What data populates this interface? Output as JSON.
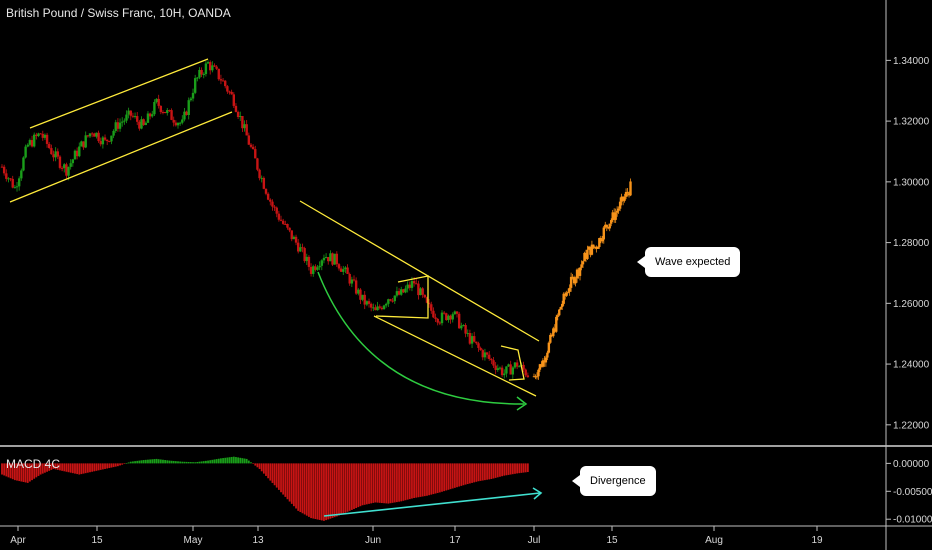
{
  "header": {
    "title": "British Pound / Swiss Franc, 10H, OANDA"
  },
  "indicator": {
    "label": "MACD 4C"
  },
  "callouts": {
    "wave": "Wave expected",
    "divergence": "Divergence"
  },
  "colors": {
    "bull": "#1a9e1a",
    "bear": "#c81414",
    "projection": "#f7931a",
    "channel": "#ffeb3b",
    "arc": "#2ecc40",
    "divergence_line": "#40e0d0",
    "background": "#000000"
  },
  "chart_data": [
    {
      "type": "line",
      "title": "British Pound / Swiss Franc, 10H, OANDA",
      "ylabel": "",
      "xlabel": "",
      "ylim": [
        1.215,
        1.35
      ],
      "y_ticks": [
        "1.34000",
        "1.32000",
        "1.30000",
        "1.28000",
        "1.26000",
        "1.24000",
        "1.22000"
      ],
      "x_ticks": [
        "Apr",
        "15",
        "May",
        "13",
        "Jun",
        "17",
        "Jul",
        "15",
        "Aug",
        "19"
      ],
      "series": [
        {
          "name": "",
          "values": [
            1.305,
            1.298,
            1.312,
            1.316,
            1.309,
            1.304,
            1.311,
            1.317,
            1.313,
            1.319,
            1.322,
            1.318,
            1.326,
            1.322,
            1.319,
            1.333,
            1.339,
            1.334,
            1.327,
            1.315,
            1.303,
            1.292,
            1.285,
            1.279,
            1.271,
            1.276,
            1.274,
            1.268,
            1.261,
            1.257,
            1.262,
            1.263,
            1.267,
            1.259,
            1.255,
            1.257,
            1.25,
            1.245,
            1.241,
            1.237,
            1.24,
            1.236
          ]
        },
        {
          "name": "",
          "values": [
            1.236,
            1.241,
            1.249,
            1.259,
            1.266,
            1.271,
            1.277,
            1.279,
            1.285,
            1.289,
            1.294,
            1.299
          ]
        }
      ],
      "grid": false
    },
    {
      "type": "bar",
      "title": "MACD 4C",
      "ylim": [
        -0.0105,
        0.0015
      ],
      "y_ticks": [
        "0.00000",
        "-0.00500",
        "-0.01000"
      ],
      "series": [
        {
          "name": "",
          "values": [
            -0.002,
            -0.003,
            -0.0035,
            -0.002,
            -0.001,
            -0.0015,
            -0.002,
            -0.0015,
            -0.001,
            -0.0005,
            0.0003,
            0.0006,
            0.0008,
            0.0005,
            0.0003,
            0.0002,
            0.0005,
            0.0009,
            0.0012,
            0.0008,
            -0.001,
            -0.0035,
            -0.006,
            -0.0085,
            -0.0098,
            -0.0103,
            -0.0095,
            -0.0085,
            -0.0075,
            -0.007,
            -0.0072,
            -0.0068,
            -0.0062,
            -0.0058,
            -0.0052,
            -0.0045,
            -0.0038,
            -0.0032,
            -0.0028,
            -0.0022,
            -0.0018,
            -0.0015
          ]
        }
      ]
    }
  ]
}
